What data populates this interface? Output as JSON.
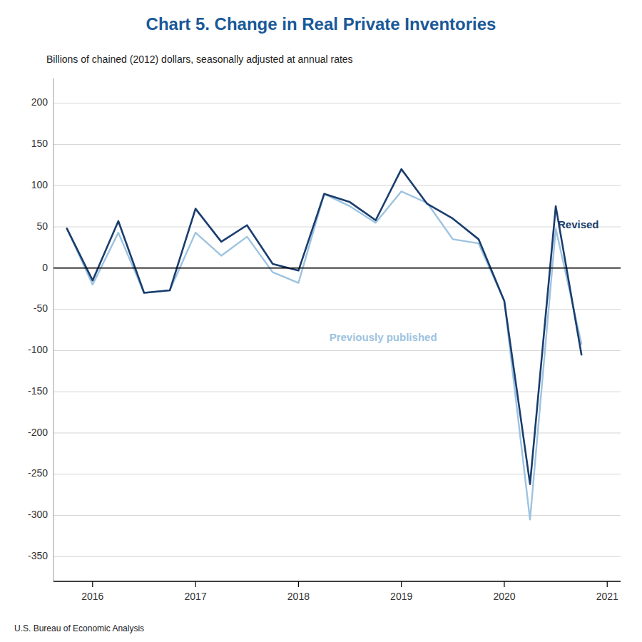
{
  "chart_data": {
    "type": "line",
    "title": "Chart 5. Change in Real Private Inventories",
    "title_color": "#1A5998",
    "subtitle": "Billions of chained (2012) dollars, seasonally adjusted at annual rates",
    "footer": "U.S. Bureau of Economic Analysis",
    "x": [
      2015.75,
      2016.0,
      2016.25,
      2016.5,
      2016.75,
      2017.0,
      2017.25,
      2017.5,
      2017.75,
      2018.0,
      2018.25,
      2018.5,
      2018.75,
      2019.0,
      2019.25,
      2019.5,
      2019.75,
      2020.0,
      2020.25,
      2020.5,
      2020.75
    ],
    "series": [
      {
        "color": "#9DC3E0",
        "values": [
          48,
          -20,
          43,
          -30,
          -27,
          43,
          15,
          38,
          -5,
          -18,
          90,
          75,
          55,
          93,
          79,
          35,
          30,
          -40,
          -305,
          48,
          -92
        ]
      },
      {
        "color": "#1A3D6E",
        "values": [
          48,
          -15,
          57,
          -30,
          -27,
          72,
          32,
          52,
          5,
          -3,
          90,
          80,
          58,
          120,
          78,
          60,
          35,
          -40,
          -262,
          75,
          -105
        ]
      }
    ],
    "annotations": [
      {
        "text": "Revised",
        "x": 2020.52,
        "y": 52,
        "color": "#1A3D6E"
      },
      {
        "text": "Previously published",
        "x": 2018.3,
        "y": -85,
        "color": "#9DC3E0"
      }
    ],
    "xlim": [
      2015.62,
      2021.13
    ],
    "xticks": [
      2016,
      2017,
      2018,
      2019,
      2020,
      2021
    ],
    "ylim": [
      -380,
      230
    ],
    "yticks": [
      -350,
      -300,
      -250,
      -200,
      -150,
      -100,
      -50,
      0,
      50,
      100,
      150,
      200
    ],
    "grid": true
  }
}
